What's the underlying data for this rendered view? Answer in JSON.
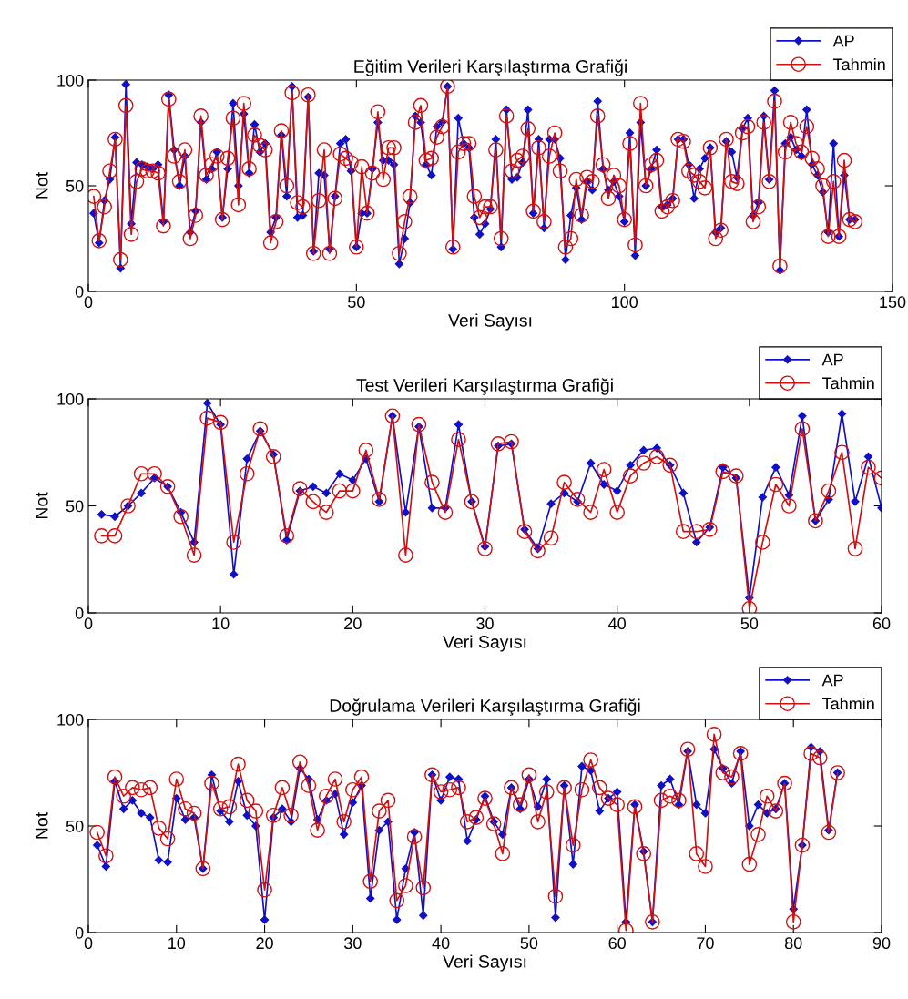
{
  "chart_data": [
    {
      "type": "line",
      "title": "Eğitim Verileri Karşılaştırma Grafiği",
      "xlabel": "Veri Sayısı",
      "ylabel": "Not",
      "xlim": [
        0,
        150
      ],
      "xticks": [
        0,
        50,
        100,
        150
      ],
      "ylim": [
        0,
        100
      ],
      "yticks": [
        0,
        50,
        100
      ],
      "grid": false,
      "legend": "top right",
      "x": [
        1,
        2,
        3,
        4,
        5,
        6,
        7,
        8,
        9,
        10,
        11,
        12,
        13,
        14,
        15,
        16,
        17,
        18,
        19,
        20,
        21,
        22,
        23,
        24,
        25,
        26,
        27,
        28,
        29,
        30,
        31,
        32,
        33,
        34,
        35,
        36,
        37,
        38,
        39,
        40,
        41,
        42,
        43,
        44,
        45,
        46,
        47,
        48,
        49,
        50,
        51,
        52,
        53,
        54,
        55,
        56,
        57,
        58,
        59,
        60,
        61,
        62,
        63,
        64,
        65,
        66,
        67,
        68,
        69,
        70,
        71,
        72,
        73,
        74,
        75,
        76,
        77,
        78,
        79,
        80,
        81,
        82,
        83,
        84,
        85,
        86,
        87,
        88,
        89,
        90,
        91,
        92,
        93,
        94,
        95,
        96,
        97,
        98,
        99,
        100,
        101,
        102,
        103,
        104,
        105,
        106,
        107,
        108,
        109,
        110,
        111,
        112,
        113,
        114,
        115,
        116,
        117,
        118,
        119,
        120,
        121,
        122,
        123,
        124,
        125,
        126,
        127,
        128,
        129,
        130,
        131,
        132,
        133,
        134,
        135,
        136,
        137,
        138,
        139,
        140,
        141,
        142,
        143
      ],
      "series": [
        {
          "name": "AP",
          "color": "#1010c8",
          "marker": "diamond",
          "values": [
            37,
            23,
            43,
            53,
            73,
            11,
            98,
            32,
            61,
            60,
            59,
            58,
            60,
            33,
            93,
            67,
            50,
            64,
            28,
            38,
            80,
            53,
            58,
            66,
            35,
            58,
            89,
            50,
            84,
            56,
            79,
            66,
            70,
            28,
            35,
            74,
            45,
            97,
            35,
            36,
            92,
            19,
            56,
            55,
            20,
            45,
            70,
            72,
            57,
            21,
            37,
            37,
            58,
            80,
            62,
            62,
            60,
            13,
            25,
            42,
            83,
            80,
            60,
            55,
            78,
            80,
            97,
            20,
            82,
            70,
            68,
            35,
            27,
            32,
            39,
            72,
            21,
            86,
            53,
            54,
            61,
            86,
            37,
            72,
            30,
            72,
            72,
            63,
            15,
            36,
            49,
            34,
            52,
            48,
            90,
            58,
            48,
            52,
            45,
            33,
            75,
            17,
            80,
            50,
            58,
            67,
            40,
            41,
            44,
            72,
            72,
            60,
            44,
            58,
            63,
            68,
            28,
            30,
            71,
            66,
            54,
            77,
            82,
            36,
            42,
            83,
            53,
            95,
            10,
            70,
            73,
            67,
            64,
            86,
            60,
            55,
            47,
            28,
            70,
            26,
            55,
            34,
            34
          ]
        },
        {
          "name": "Tahmin",
          "color": "#d01010",
          "marker": "circle",
          "values": [
            45,
            24,
            40,
            57,
            72,
            15,
            88,
            27,
            52,
            58,
            57,
            57,
            56,
            31,
            91,
            64,
            52,
            67,
            25,
            36,
            83,
            55,
            60,
            64,
            34,
            63,
            82,
            41,
            89,
            58,
            74,
            69,
            67,
            23,
            33,
            76,
            50,
            94,
            42,
            40,
            93,
            18,
            43,
            67,
            18,
            44,
            65,
            63,
            61,
            21,
            59,
            37,
            56,
            85,
            53,
            68,
            68,
            18,
            33,
            45,
            80,
            88,
            62,
            63,
            73,
            78,
            97,
            21,
            66,
            70,
            70,
            45,
            35,
            40,
            40,
            67,
            25,
            83,
            57,
            62,
            64,
            77,
            38,
            68,
            33,
            64,
            75,
            57,
            21,
            25,
            53,
            36,
            54,
            52,
            83,
            60,
            44,
            55,
            50,
            34,
            70,
            22,
            89,
            50,
            60,
            62,
            38,
            40,
            43,
            72,
            71,
            57,
            55,
            52,
            49,
            68,
            25,
            29,
            72,
            52,
            51,
            75,
            78,
            33,
            40,
            80,
            52,
            90,
            12,
            66,
            80,
            70,
            66,
            78,
            63,
            58,
            50,
            26,
            52,
            26,
            62,
            34,
            33
          ]
        }
      ]
    },
    {
      "type": "line",
      "title": "Test Verileri Karşılaştırma Grafiği",
      "xlabel": "Veri Sayısı",
      "ylabel": "Not",
      "xlim": [
        0,
        60
      ],
      "xticks": [
        0,
        10,
        20,
        30,
        40,
        50,
        60
      ],
      "ylim": [
        0,
        100
      ],
      "yticks": [
        0,
        50,
        100
      ],
      "grid": false,
      "legend": "top right",
      "x": [
        1,
        2,
        3,
        4,
        5,
        6,
        7,
        8,
        9,
        10,
        11,
        12,
        13,
        14,
        15,
        16,
        17,
        18,
        19,
        20,
        21,
        22,
        23,
        24,
        25,
        26,
        27,
        28,
        29,
        30,
        31,
        32,
        33,
        34,
        35,
        36,
        37,
        38,
        39,
        40,
        41,
        42,
        43,
        44,
        45,
        46,
        47,
        48,
        49,
        50,
        51,
        52,
        53,
        54,
        55,
        56,
        57,
        58,
        59,
        60
      ],
      "series": [
        {
          "name": "AP",
          "color": "#1010c8",
          "marker": "diamond",
          "values": [
            46,
            45,
            50,
            56,
            63,
            59,
            47,
            33,
            98,
            88,
            18,
            72,
            85,
            74,
            34,
            57,
            59,
            56,
            65,
            62,
            72,
            52,
            92,
            47,
            87,
            49,
            49,
            88,
            52,
            31,
            78,
            79,
            39,
            30,
            51,
            56,
            52,
            70,
            60,
            57,
            69,
            76,
            77,
            69,
            56,
            33,
            40,
            68,
            63,
            7,
            54,
            68,
            55,
            92,
            43,
            53,
            93,
            52,
            73,
            49
          ]
        },
        {
          "name": "Tahmin",
          "color": "#d01010",
          "marker": "circle",
          "values": [
            36,
            36,
            50,
            65,
            65,
            59,
            45,
            27,
            91,
            89,
            33,
            65,
            86,
            73,
            36,
            58,
            52,
            47,
            57,
            57,
            76,
            53,
            92,
            27,
            88,
            61,
            47,
            81,
            52,
            30,
            79,
            80,
            38,
            29,
            35,
            61,
            53,
            47,
            67,
            47,
            64,
            70,
            73,
            69,
            38,
            38,
            39,
            66,
            64,
            2,
            33,
            60,
            50,
            86,
            43,
            57,
            75,
            30,
            68,
            63
          ]
        }
      ]
    },
    {
      "type": "line",
      "title": "Doğrulama Verileri Karşılaştırma Grafiği",
      "xlabel": "Veri Sayısı",
      "ylabel": "Not",
      "xlim": [
        0,
        90
      ],
      "xticks": [
        0,
        10,
        20,
        30,
        40,
        50,
        60,
        70,
        80,
        90
      ],
      "ylim": [
        0,
        100
      ],
      "yticks": [
        0,
        50,
        100
      ],
      "grid": false,
      "legend": "top right",
      "x": [
        1,
        2,
        3,
        4,
        5,
        6,
        7,
        8,
        9,
        10,
        11,
        12,
        13,
        14,
        15,
        16,
        17,
        18,
        19,
        20,
        21,
        22,
        23,
        24,
        25,
        26,
        27,
        28,
        29,
        30,
        31,
        32,
        33,
        34,
        35,
        36,
        37,
        38,
        39,
        40,
        41,
        42,
        43,
        44,
        45,
        46,
        47,
        48,
        49,
        50,
        51,
        52,
        53,
        54,
        55,
        56,
        57,
        58,
        59,
        60,
        61,
        62,
        63,
        64,
        65,
        66,
        67,
        68,
        69,
        70,
        71,
        72,
        73,
        74,
        75,
        76,
        77,
        78,
        79,
        80,
        81,
        82,
        83,
        84,
        85
      ],
      "series": [
        {
          "name": "AP",
          "color": "#1010c8",
          "marker": "diamond",
          "values": [
            41,
            31,
            71,
            58,
            62,
            56,
            54,
            34,
            33,
            63,
            53,
            54,
            30,
            74,
            57,
            52,
            71,
            55,
            50,
            6,
            54,
            58,
            52,
            77,
            72,
            53,
            62,
            65,
            46,
            61,
            69,
            16,
            48,
            52,
            6,
            30,
            47,
            8,
            74,
            62,
            73,
            72,
            43,
            53,
            64,
            52,
            46,
            68,
            58,
            72,
            59,
            72,
            7,
            69,
            32,
            78,
            76,
            57,
            63,
            66,
            5,
            60,
            38,
            5,
            69,
            72,
            60,
            85,
            60,
            56,
            86,
            77,
            70,
            85,
            50,
            60,
            56,
            58,
            70,
            11,
            41,
            87,
            85,
            48,
            75
          ]
        },
        {
          "name": "Tahmin",
          "color": "#d01010",
          "marker": "circle",
          "values": [
            47,
            36,
            73,
            64,
            68,
            67,
            68,
            49,
            44,
            72,
            58,
            56,
            30,
            70,
            58,
            59,
            79,
            62,
            57,
            20,
            55,
            68,
            55,
            80,
            69,
            48,
            64,
            72,
            52,
            67,
            73,
            24,
            57,
            62,
            15,
            22,
            45,
            21,
            74,
            66,
            67,
            68,
            52,
            54,
            63,
            51,
            37,
            68,
            60,
            74,
            52,
            66,
            17,
            68,
            41,
            67,
            81,
            68,
            63,
            60,
            1,
            59,
            37,
            5,
            62,
            64,
            62,
            86,
            37,
            31,
            93,
            75,
            73,
            84,
            32,
            46,
            64,
            57,
            70,
            5,
            41,
            84,
            82,
            47,
            75
          ]
        }
      ]
    }
  ]
}
